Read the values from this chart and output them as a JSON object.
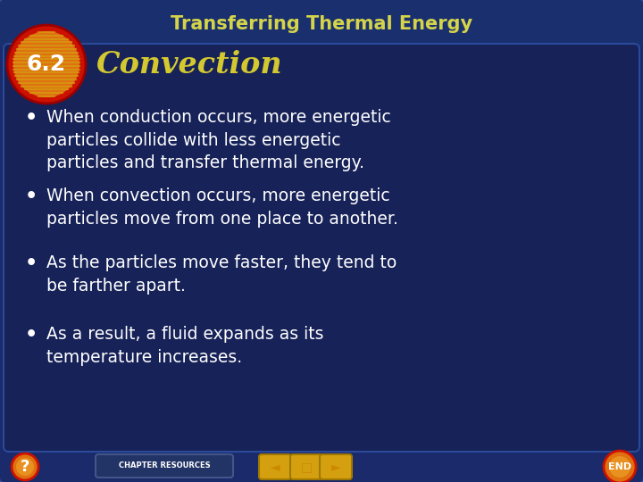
{
  "title": "Transferring Thermal Energy",
  "title_color": "#d4d44a",
  "section_number": "6.2",
  "section_title": "Convection",
  "section_title_color": "#d4c830",
  "bg_outer_color": "#1a2a6a",
  "bg_inner_color": "#1a2f6e",
  "bg_content_color": "#162258",
  "bullet_points": [
    "When conduction occurs, more energetic\nparticles collide with less energetic\nparticles and transfer thermal energy.",
    "When convection occurs, more energetic\nparticles move from one place to another.",
    "As the particles move faster, they tend to\nbe farther apart.",
    "As a result, a fluid expands as its\ntemperature increases."
  ],
  "bullet_color": "#ffffff",
  "circle_red": "#cc1100",
  "circle_orange": "#e07010",
  "circle_gold": "#d4a010",
  "circle_text_color": "#ffffff",
  "nav_gold": "#d4a010",
  "figsize": [
    7.2,
    5.4
  ],
  "dpi": 100
}
